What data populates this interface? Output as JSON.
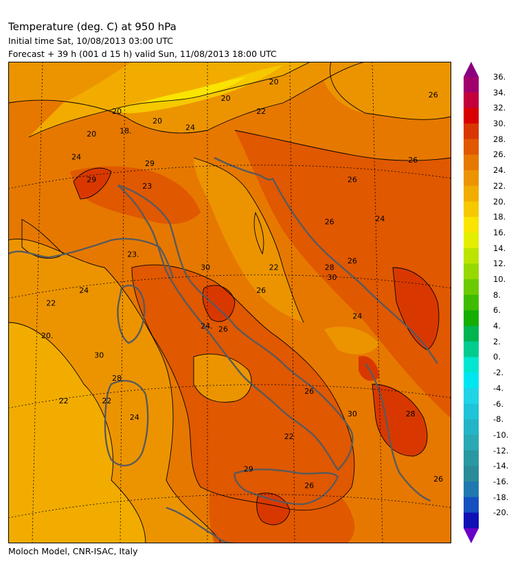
{
  "header": {
    "title": "Temperature (deg. C) at 950 hPa",
    "initial_time": "Initial time  Sat, 10/08/2013  03:00 UTC",
    "forecast": "Forecast  +  39 h  (001 d 15 h)  valid Sun, 11/08/2013 18:00 UTC"
  },
  "footer": {
    "credit": "Moloch Model, CNR-ISAC, Italy"
  },
  "colorbar": {
    "labels": [
      "36.",
      "34.",
      "32.",
      "30.",
      "28.",
      "26.",
      "24.",
      "22.",
      "20.",
      "18.",
      "16.",
      "14.",
      "12.",
      "10.",
      "8.",
      "6.",
      "4.",
      "2.",
      "0.",
      "-2.",
      "-4.",
      "-6.",
      "-8.",
      "-10.",
      "-12.",
      "-14.",
      "-16.",
      "-18.",
      "-20."
    ],
    "colors": [
      "#a0006e",
      "#c4003c",
      "#d80000",
      "#d83800",
      "#e05800",
      "#e67800",
      "#ec9400",
      "#f2ac00",
      "#f6c800",
      "#fae400",
      "#e4ee00",
      "#bce400",
      "#96d800",
      "#6cca00",
      "#40bc00",
      "#14ae00",
      "#00b450",
      "#00cc90",
      "#00e6d0",
      "#00e6f0",
      "#20d4e6",
      "#20c4d8",
      "#24b4c8",
      "#2aa8b4",
      "#2a98a0",
      "#2a8a98",
      "#2078b0",
      "#1450c0",
      "#1010b4"
    ],
    "top_arrow_color": "#8a0080",
    "bottom_arrow_color": "#6a00c8"
  },
  "contour_labels": [
    {
      "text": "20",
      "lon": 9.6,
      "lat": 47.2
    },
    {
      "text": "18.",
      "lon": 9.9,
      "lat": 46.6
    },
    {
      "text": "20",
      "lon": 8.6,
      "lat": 46.5
    },
    {
      "text": "24",
      "lon": 8.0,
      "lat": 45.8
    },
    {
      "text": "20",
      "lon": 11.2,
      "lat": 46.9
    },
    {
      "text": "24",
      "lon": 12.5,
      "lat": 46.7
    },
    {
      "text": "20",
      "lon": 13.9,
      "lat": 47.6
    },
    {
      "text": "22",
      "lon": 15.3,
      "lat": 47.2
    },
    {
      "text": "20",
      "lon": 15.8,
      "lat": 48.1
    },
    {
      "text": "26",
      "lon": 22.1,
      "lat": 47.7
    },
    {
      "text": "26",
      "lon": 21.3,
      "lat": 45.7
    },
    {
      "text": "26",
      "lon": 18.9,
      "lat": 45.1
    },
    {
      "text": "26",
      "lon": 18.0,
      "lat": 43.8
    },
    {
      "text": "24",
      "lon": 20.0,
      "lat": 43.9
    },
    {
      "text": "29",
      "lon": 8.6,
      "lat": 45.1
    },
    {
      "text": "29",
      "lon": 10.9,
      "lat": 45.6
    },
    {
      "text": "23",
      "lon": 10.8,
      "lat": 44.9
    },
    {
      "text": "23.",
      "lon": 10.2,
      "lat": 42.8
    },
    {
      "text": "30",
      "lon": 13.1,
      "lat": 42.4
    },
    {
      "text": "22",
      "lon": 15.8,
      "lat": 42.4
    },
    {
      "text": "22",
      "lon": 7.0,
      "lat": 41.3
    },
    {
      "text": "24",
      "lon": 8.3,
      "lat": 41.7
    },
    {
      "text": "26",
      "lon": 15.3,
      "lat": 41.7
    },
    {
      "text": "28",
      "lon": 18.0,
      "lat": 42.4
    },
    {
      "text": "30",
      "lon": 18.1,
      "lat": 42.1
    },
    {
      "text": "26",
      "lon": 18.9,
      "lat": 42.6
    },
    {
      "text": "24",
      "lon": 19.1,
      "lat": 40.9
    },
    {
      "text": "20.",
      "lon": 6.8,
      "lat": 40.3
    },
    {
      "text": "24.",
      "lon": 13.1,
      "lat": 40.6
    },
    {
      "text": "26",
      "lon": 13.8,
      "lat": 40.5
    },
    {
      "text": "30",
      "lon": 8.9,
      "lat": 39.7
    },
    {
      "text": "28",
      "lon": 9.6,
      "lat": 39.0
    },
    {
      "text": "26",
      "lon": 17.2,
      "lat": 38.6
    },
    {
      "text": "22",
      "lon": 7.5,
      "lat": 38.3
    },
    {
      "text": "22",
      "lon": 9.2,
      "lat": 38.3
    },
    {
      "text": "24",
      "lon": 10.3,
      "lat": 37.8
    },
    {
      "text": "30",
      "lon": 18.9,
      "lat": 37.9
    },
    {
      "text": "28",
      "lon": 21.2,
      "lat": 37.9
    },
    {
      "text": "22",
      "lon": 16.4,
      "lat": 37.2
    },
    {
      "text": "29",
      "lon": 14.8,
      "lat": 36.2
    },
    {
      "text": "26",
      "lon": 17.2,
      "lat": 35.7
    },
    {
      "text": "26",
      "lon": 22.3,
      "lat": 35.9
    }
  ]
}
